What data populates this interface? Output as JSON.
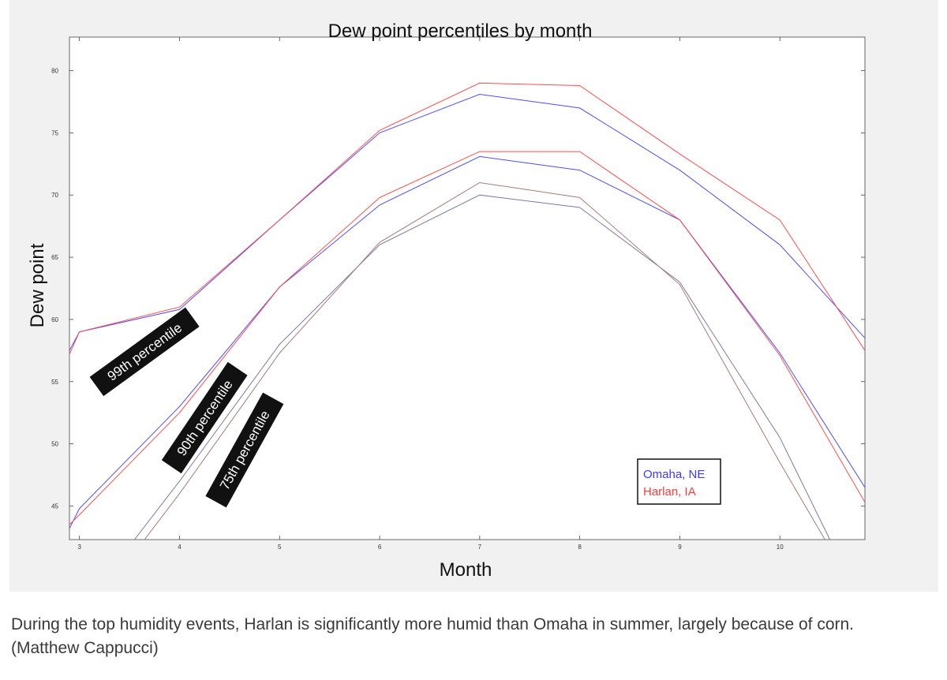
{
  "chart_data": {
    "type": "line",
    "title": "Dew point percentiles by month",
    "xlabel": "Month",
    "ylabel": "Dew point",
    "xlim": [
      2.9,
      10.85
    ],
    "ylim": [
      42.3,
      82.7
    ],
    "x_ticks": [
      3,
      4,
      5,
      6,
      7,
      8,
      9,
      10
    ],
    "y_ticks": [
      45,
      50,
      55,
      60,
      65,
      70,
      75,
      80
    ],
    "grid": false,
    "legend_position": "lower-right",
    "legend": [
      {
        "label": "Omaha, NE",
        "color": "#3b3bff"
      },
      {
        "label": "Harlan, IA",
        "color": "#ff3b3b"
      }
    ],
    "series": [
      {
        "name": "Omaha, NE",
        "percentile": "99th",
        "color": "#4d4dff",
        "points": [
          [
            2.9,
            57.5
          ],
          [
            3,
            59
          ],
          [
            4,
            60.8
          ],
          [
            5,
            68
          ],
          [
            6,
            75
          ],
          [
            7,
            78.1
          ],
          [
            8,
            77
          ],
          [
            9,
            72
          ],
          [
            10,
            66
          ],
          [
            10.85,
            58.5
          ]
        ]
      },
      {
        "name": "Harlan, IA",
        "percentile": "99th",
        "color": "#ff4d4d",
        "points": [
          [
            2.9,
            57.2
          ],
          [
            3,
            59
          ],
          [
            4,
            61
          ],
          [
            5,
            68
          ],
          [
            6,
            75.2
          ],
          [
            7,
            79
          ],
          [
            8,
            78.8
          ],
          [
            9,
            73.3
          ],
          [
            10,
            68
          ],
          [
            10.85,
            57.5
          ]
        ]
      },
      {
        "name": "Omaha, NE",
        "percentile": "90th",
        "color": "#4d4dff",
        "points": [
          [
            2.9,
            43.2
          ],
          [
            3,
            44.8
          ],
          [
            4,
            53
          ],
          [
            5,
            62.6
          ],
          [
            6,
            69.2
          ],
          [
            7,
            73.1
          ],
          [
            8,
            72
          ],
          [
            9,
            68
          ],
          [
            10,
            57.3
          ],
          [
            10.85,
            46.5
          ]
        ]
      },
      {
        "name": "Harlan, IA",
        "percentile": "90th",
        "color": "#ff4d4d",
        "points": [
          [
            2.9,
            43.5
          ],
          [
            3,
            44.3
          ],
          [
            4,
            52.5
          ],
          [
            5,
            62.6
          ],
          [
            6,
            69.8
          ],
          [
            7,
            73.5
          ],
          [
            8,
            73.5
          ],
          [
            9,
            68
          ],
          [
            10,
            57.1
          ],
          [
            10.85,
            45.3
          ]
        ]
      },
      {
        "name": "Omaha, NE",
        "percentile": "75th",
        "color": "#7a7aa8",
        "points": [
          [
            3.55,
            42.3
          ],
          [
            4,
            47
          ],
          [
            5,
            58
          ],
          [
            6,
            66
          ],
          [
            7,
            70
          ],
          [
            8,
            69
          ],
          [
            9,
            63
          ],
          [
            10,
            50.5
          ],
          [
            10.5,
            42.3
          ]
        ]
      },
      {
        "name": "Harlan, IA",
        "percentile": "75th",
        "color": "#a87a7a",
        "points": [
          [
            3.65,
            42.3
          ],
          [
            4,
            46
          ],
          [
            5,
            57.3
          ],
          [
            6,
            66.2
          ],
          [
            7,
            71
          ],
          [
            8,
            69.8
          ],
          [
            9,
            62.8
          ],
          [
            10,
            48.5
          ],
          [
            10.45,
            42.3
          ]
        ]
      }
    ],
    "annotations": [
      {
        "text": "99th percentile",
        "at": [
          3.65,
          57.4
        ],
        "angle": -36
      },
      {
        "text": "90th percentile",
        "at": [
          4.25,
          52.1
        ],
        "angle": -56
      },
      {
        "text": "75th percentile",
        "at": [
          4.65,
          49.5
        ],
        "angle": -61
      }
    ]
  },
  "caption": "During the top humidity events, Harlan is significantly more humid than Omaha in summer, largely because of corn. (Matthew Cappucci)"
}
